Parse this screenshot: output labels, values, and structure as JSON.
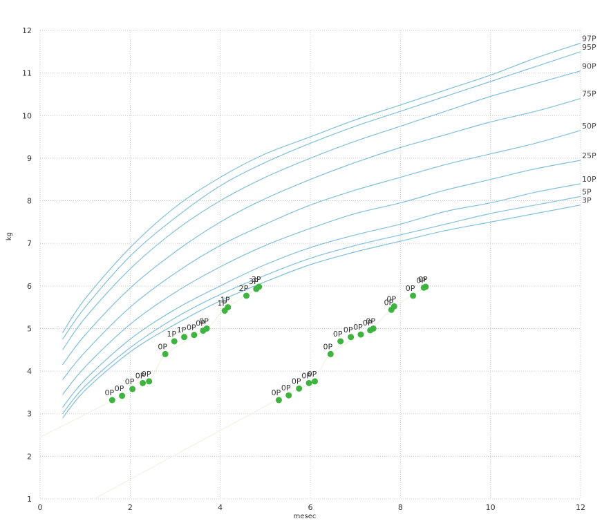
{
  "chart_data": {
    "type": "line",
    "xlabel": "mesec",
    "ylabel": "kg",
    "xlim": [
      0,
      12
    ],
    "ylim": [
      1,
      12
    ],
    "xticks": [
      "0",
      "2",
      "4",
      "6",
      "8",
      "10",
      "12"
    ],
    "yticks": [
      "1",
      "2",
      "3",
      "4",
      "5",
      "6",
      "7",
      "8",
      "9",
      "10",
      "11",
      "12"
    ],
    "grid": true,
    "colors": {
      "curve": "#7fbfdc",
      "point": "#3fb33f",
      "trend": "#eef3e2"
    },
    "percentile_curves": [
      {
        "label": "97P",
        "x": [
          0.5,
          1,
          2,
          3,
          4,
          5,
          6,
          7,
          8,
          9,
          10,
          11,
          12
        ],
        "y": [
          4.9,
          5.7,
          6.9,
          7.85,
          8.55,
          9.1,
          9.5,
          9.9,
          10.25,
          10.6,
          10.95,
          11.35,
          11.7
        ]
      },
      {
        "label": "95P",
        "x": [
          0.5,
          1,
          2,
          3,
          4,
          5,
          6,
          7,
          8,
          9,
          10,
          11,
          12
        ],
        "y": [
          4.75,
          5.5,
          6.7,
          7.6,
          8.35,
          8.9,
          9.35,
          9.75,
          10.1,
          10.45,
          10.8,
          11.15,
          11.5
        ]
      },
      {
        "label": "90P",
        "x": [
          0.5,
          1,
          2,
          3,
          4,
          5,
          6,
          7,
          8,
          9,
          10,
          11,
          12
        ],
        "y": [
          4.5,
          5.25,
          6.4,
          7.3,
          8.0,
          8.55,
          9.0,
          9.4,
          9.75,
          10.1,
          10.45,
          10.75,
          11.05
        ]
      },
      {
        "label": "75P",
        "x": [
          0.5,
          1,
          2,
          3,
          4,
          5,
          6,
          7,
          8,
          9,
          10,
          11,
          12
        ],
        "y": [
          4.15,
          4.85,
          5.95,
          6.8,
          7.5,
          8.05,
          8.5,
          8.9,
          9.25,
          9.55,
          9.85,
          10.1,
          10.4
        ]
      },
      {
        "label": "50P",
        "x": [
          0.5,
          1,
          2,
          3,
          4,
          5,
          6,
          7,
          8,
          9,
          10,
          11,
          12
        ],
        "y": [
          3.8,
          4.45,
          5.5,
          6.3,
          6.95,
          7.45,
          7.9,
          8.25,
          8.55,
          8.85,
          9.1,
          9.35,
          9.65
        ]
      },
      {
        "label": "25P",
        "x": [
          0.5,
          1,
          2,
          3,
          4,
          5,
          6,
          7,
          8,
          9,
          10,
          11,
          12
        ],
        "y": [
          3.45,
          4.1,
          5.1,
          5.85,
          6.45,
          6.95,
          7.35,
          7.7,
          7.95,
          8.25,
          8.5,
          8.75,
          8.95
        ]
      },
      {
        "label": "10P",
        "x": [
          0.5,
          1,
          2,
          3,
          4,
          5,
          6,
          7,
          8,
          9,
          10,
          11,
          12
        ],
        "y": [
          3.15,
          3.8,
          4.75,
          5.45,
          6.0,
          6.5,
          6.9,
          7.2,
          7.45,
          7.75,
          7.95,
          8.2,
          8.4
        ]
      },
      {
        "label": "5P",
        "x": [
          0.5,
          1,
          2,
          3,
          4,
          5,
          6,
          7,
          8,
          9,
          10,
          11,
          12
        ],
        "y": [
          3.0,
          3.65,
          4.55,
          5.25,
          5.8,
          6.25,
          6.65,
          6.95,
          7.2,
          7.45,
          7.7,
          7.9,
          8.1
        ]
      },
      {
        "label": "3P",
        "x": [
          0.5,
          1,
          2,
          3,
          4,
          5,
          6,
          7,
          8,
          9,
          10,
          11,
          12
        ],
        "y": [
          2.9,
          3.55,
          4.45,
          5.1,
          5.65,
          6.1,
          6.5,
          6.8,
          7.05,
          7.3,
          7.5,
          7.7,
          7.9
        ]
      }
    ],
    "trend_lines": [
      {
        "x": [
          0,
          1.6,
          2.4,
          2.8,
          3.7,
          4.1,
          4.85
        ],
        "y": [
          2.45,
          3.3,
          3.75,
          4.4,
          5.0,
          5.45,
          5.95
        ]
      },
      {
        "x": [
          1.2,
          5.3,
          6.05,
          6.45,
          7.35,
          7.8,
          8.5
        ],
        "y": [
          1.0,
          3.35,
          3.75,
          4.4,
          5.0,
          5.45,
          5.95
        ]
      }
    ],
    "points": [
      {
        "x": 1.6,
        "y": 3.32,
        "label": "0P"
      },
      {
        "x": 1.82,
        "y": 3.42,
        "label": "0P"
      },
      {
        "x": 2.05,
        "y": 3.58,
        "label": "0P"
      },
      {
        "x": 2.28,
        "y": 3.72,
        "label": "0P"
      },
      {
        "x": 2.42,
        "y": 3.76,
        "label": "0P"
      },
      {
        "x": 2.78,
        "y": 4.4,
        "label": "0P"
      },
      {
        "x": 2.98,
        "y": 4.7,
        "label": "1P"
      },
      {
        "x": 3.2,
        "y": 4.8,
        "label": "1P"
      },
      {
        "x": 3.42,
        "y": 4.85,
        "label": "0P"
      },
      {
        "x": 3.62,
        "y": 4.95,
        "label": "0P"
      },
      {
        "x": 3.7,
        "y": 5.0,
        "label": "0P"
      },
      {
        "x": 4.1,
        "y": 5.42,
        "label": "1P"
      },
      {
        "x": 4.17,
        "y": 5.5,
        "label": "1P"
      },
      {
        "x": 4.58,
        "y": 5.77,
        "label": "2P"
      },
      {
        "x": 4.8,
        "y": 5.93,
        "label": "3P"
      },
      {
        "x": 4.86,
        "y": 5.98,
        "label": "3P"
      },
      {
        "x": 5.3,
        "y": 3.32,
        "label": "0P"
      },
      {
        "x": 5.52,
        "y": 3.43,
        "label": "0P"
      },
      {
        "x": 5.75,
        "y": 3.59,
        "label": "0P"
      },
      {
        "x": 5.97,
        "y": 3.72,
        "label": "0P"
      },
      {
        "x": 6.1,
        "y": 3.76,
        "label": "0P"
      },
      {
        "x": 6.45,
        "y": 4.4,
        "label": "0P"
      },
      {
        "x": 6.67,
        "y": 4.7,
        "label": "0P"
      },
      {
        "x": 6.9,
        "y": 4.8,
        "label": "0P"
      },
      {
        "x": 7.12,
        "y": 4.86,
        "label": "0P"
      },
      {
        "x": 7.33,
        "y": 4.96,
        "label": "0P"
      },
      {
        "x": 7.4,
        "y": 5.0,
        "label": "0P"
      },
      {
        "x": 7.8,
        "y": 5.44,
        "label": "0P"
      },
      {
        "x": 7.86,
        "y": 5.52,
        "label": "0P"
      },
      {
        "x": 8.28,
        "y": 5.77,
        "label": "0P"
      },
      {
        "x": 8.52,
        "y": 5.96,
        "label": "0P"
      },
      {
        "x": 8.56,
        "y": 5.98,
        "label": "0P"
      }
    ]
  }
}
